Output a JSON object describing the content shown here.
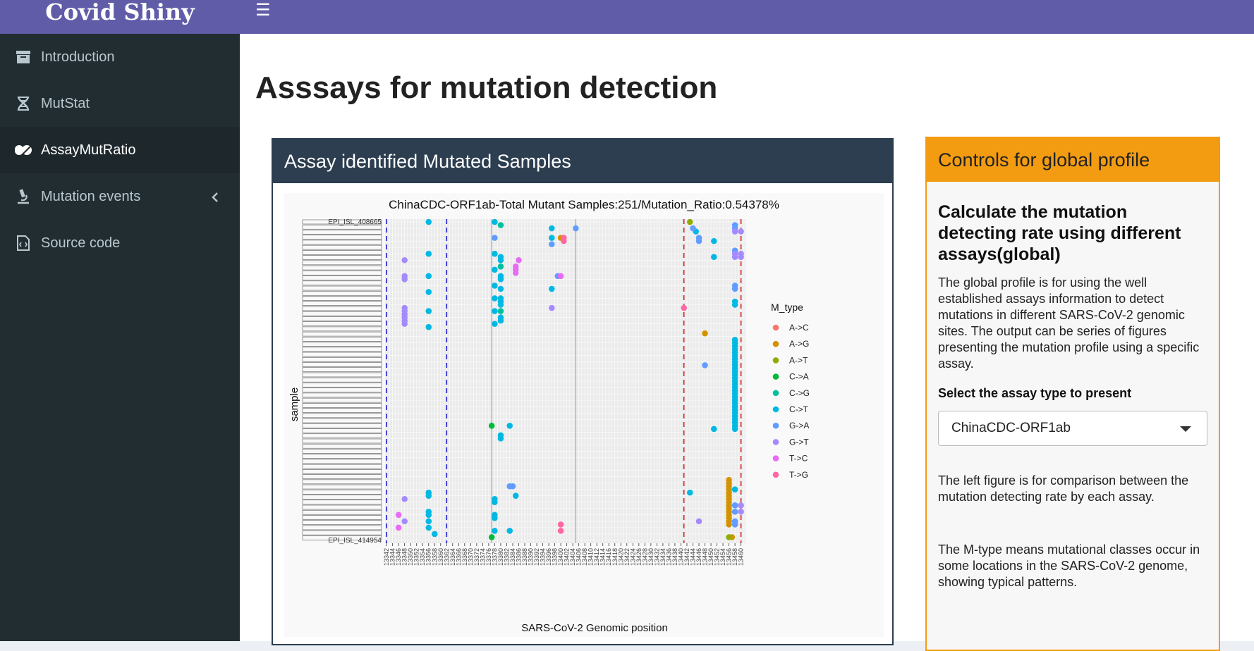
{
  "app": {
    "title": "Covid Shiny"
  },
  "sidebar": {
    "items": [
      {
        "label": "Introduction",
        "icon": "archive-icon"
      },
      {
        "label": "MutStat",
        "icon": "dna-icon"
      },
      {
        "label": "AssayMutRatio",
        "icon": "capsules-icon"
      },
      {
        "label": "Mutation events",
        "icon": "microscope-icon"
      },
      {
        "label": "Source code",
        "icon": "file-code-icon"
      }
    ]
  },
  "colors": {
    "topbar": "#605ca8",
    "sidebar": "#222d32",
    "primary_box": "#2c3e50",
    "warning_box": "#f39c12"
  },
  "page": {
    "title": "Asssays for mutation detection"
  },
  "plot_box": {
    "title": "Assay identified Mutated Samples"
  },
  "controls": {
    "header": "Controls for global profile",
    "heading": "Calculate the mutation detecting rate using different assays(global)",
    "description": "The global profile is for using the well established assays information to detect mutations in different SARS-CoV-2 genomic sites. The output can be series of figures presenting the mutation profile using a specific assay.",
    "select_label": "Select the assay type to present",
    "select_value": "ChinaCDC-ORF1ab",
    "note1": "The left figure is for comparison between the mutation detecting rate by each assay.",
    "note2": "The M-type means mutational classes occur in some locations in the SARS-CoV-2 genome, showing typical patterns."
  },
  "chart_data": {
    "type": "scatter",
    "title": "ChinaCDC-ORF1ab-Total Mutant Samples:251/Mutation_Ratio:0.54378%",
    "xlabel": "SARS-CoV-2 Genomic position",
    "ylabel": "sample",
    "xlim": [
      13342,
      13460
    ],
    "x_ticks": [
      13342,
      13344,
      13346,
      13348,
      13350,
      13352,
      13354,
      13356,
      13358,
      13360,
      13362,
      13364,
      13366,
      13368,
      13370,
      13372,
      13374,
      13376,
      13378,
      13380,
      13382,
      13384,
      13386,
      13388,
      13390,
      13392,
      13394,
      13396,
      13398,
      13400,
      13402,
      13404,
      13406,
      13408,
      13410,
      13412,
      13414,
      13416,
      13418,
      13420,
      13422,
      13424,
      13426,
      13428,
      13430,
      13432,
      13434,
      13436,
      13438,
      13440,
      13442,
      13444,
      13446,
      13448,
      13450,
      13452,
      13454,
      13456,
      13458,
      13460
    ],
    "y_top_label": "EPI_ISL_408665",
    "y_bottom_label": "EPI_ISL_414954",
    "n_samples": 251,
    "vlines": [
      {
        "x": 13342,
        "color": "#2222cc",
        "dash": true
      },
      {
        "x": 13362,
        "color": "#2222cc",
        "dash": true
      },
      {
        "x": 13377,
        "color": "#999999",
        "dash": false
      },
      {
        "x": 13405,
        "color": "#999999",
        "dash": false
      },
      {
        "x": 13441,
        "color": "#cc2222",
        "dash": true
      },
      {
        "x": 13460,
        "color": "#cc2222",
        "dash": true
      }
    ],
    "legend_title": "M_type",
    "legend_position": "right",
    "series": [
      {
        "name": "A->C",
        "color": "#f8766d",
        "points": []
      },
      {
        "name": "A->G",
        "color": "#d39200",
        "points": [
          [
            13400,
            5
          ],
          [
            13448,
            35
          ],
          [
            13456,
            81
          ],
          [
            13456,
            82
          ],
          [
            13456,
            83
          ],
          [
            13456,
            84
          ],
          [
            13456,
            85
          ],
          [
            13456,
            86
          ],
          [
            13456,
            87
          ],
          [
            13456,
            88
          ],
          [
            13456,
            89
          ],
          [
            13456,
            90
          ],
          [
            13456,
            91
          ],
          [
            13456,
            92
          ],
          [
            13456,
            93
          ],
          [
            13456,
            94
          ],
          [
            13456,
            95
          ],
          [
            13457,
            99
          ]
        ]
      },
      {
        "name": "A->T",
        "color": "#93aa00",
        "points": [
          [
            13443,
            0
          ],
          [
            13456,
            99
          ]
        ]
      },
      {
        "name": "C->A",
        "color": "#00ba38",
        "points": [
          [
            13377,
            64
          ],
          [
            13377,
            99
          ]
        ]
      },
      {
        "name": "C->G",
        "color": "#00c19f",
        "points": [
          [
            13380,
            1
          ],
          [
            13380,
            14
          ],
          [
            13380,
            28
          ]
        ]
      },
      {
        "name": "C->T",
        "color": "#00b9e3",
        "points": [
          [
            13356,
            0
          ],
          [
            13356,
            10
          ],
          [
            13356,
            17
          ],
          [
            13356,
            22
          ],
          [
            13356,
            28
          ],
          [
            13356,
            33
          ],
          [
            13356,
            85
          ],
          [
            13356,
            86
          ],
          [
            13356,
            91
          ],
          [
            13356,
            92
          ],
          [
            13356,
            94
          ],
          [
            13356,
            96
          ],
          [
            13358,
            98
          ],
          [
            13378,
            0
          ],
          [
            13378,
            10
          ],
          [
            13378,
            15
          ],
          [
            13378,
            20
          ],
          [
            13378,
            24
          ],
          [
            13378,
            28
          ],
          [
            13378,
            32
          ],
          [
            13378,
            87
          ],
          [
            13378,
            88
          ],
          [
            13378,
            92
          ],
          [
            13378,
            93
          ],
          [
            13378,
            97
          ],
          [
            13380,
            11
          ],
          [
            13380,
            12
          ],
          [
            13380,
            17
          ],
          [
            13380,
            18
          ],
          [
            13380,
            21
          ],
          [
            13380,
            24
          ],
          [
            13380,
            25
          ],
          [
            13380,
            26
          ],
          [
            13380,
            30
          ],
          [
            13380,
            31
          ],
          [
            13380,
            67
          ],
          [
            13380,
            68
          ],
          [
            13383,
            64
          ],
          [
            13383,
            97
          ],
          [
            13385,
            86
          ],
          [
            13397,
            2
          ],
          [
            13397,
            5
          ],
          [
            13397,
            21
          ],
          [
            13443,
            85
          ],
          [
            13445,
            3
          ],
          [
            13451,
            6
          ],
          [
            13451,
            11
          ],
          [
            13458,
            25
          ],
          [
            13458,
            26
          ],
          [
            13458,
            37
          ],
          [
            13458,
            38
          ],
          [
            13458,
            39
          ],
          [
            13458,
            40
          ],
          [
            13458,
            41
          ],
          [
            13458,
            42
          ],
          [
            13458,
            43
          ],
          [
            13458,
            44
          ],
          [
            13458,
            45
          ],
          [
            13458,
            46
          ],
          [
            13458,
            47
          ],
          [
            13458,
            48
          ],
          [
            13458,
            49
          ],
          [
            13458,
            50
          ],
          [
            13458,
            51
          ],
          [
            13458,
            52
          ],
          [
            13458,
            53
          ],
          [
            13458,
            54
          ],
          [
            13458,
            55
          ],
          [
            13458,
            56
          ],
          [
            13458,
            57
          ],
          [
            13458,
            58
          ],
          [
            13458,
            59
          ],
          [
            13458,
            60
          ],
          [
            13458,
            61
          ],
          [
            13458,
            62
          ],
          [
            13458,
            63
          ],
          [
            13458,
            64
          ],
          [
            13458,
            65
          ],
          [
            13458,
            84
          ],
          [
            13458,
            89
          ],
          [
            13451,
            65
          ]
        ]
      },
      {
        "name": "G->A",
        "color": "#619cff",
        "points": [
          [
            13378,
            5
          ],
          [
            13383,
            83
          ],
          [
            13384,
            83
          ],
          [
            13397,
            7
          ],
          [
            13399,
            17
          ],
          [
            13405,
            2
          ],
          [
            13444,
            2
          ],
          [
            13446,
            5
          ],
          [
            13446,
            6
          ],
          [
            13458,
            1
          ],
          [
            13458,
            2
          ],
          [
            13458,
            9
          ],
          [
            13458,
            20
          ],
          [
            13458,
            21
          ],
          [
            13458,
            89
          ],
          [
            13458,
            91
          ],
          [
            13458,
            94
          ],
          [
            13458,
            95
          ],
          [
            13448,
            45
          ]
        ]
      },
      {
        "name": "G->T",
        "color": "#a58aff",
        "points": [
          [
            13348,
            12
          ],
          [
            13348,
            17
          ],
          [
            13348,
            18
          ],
          [
            13348,
            27
          ],
          [
            13348,
            28
          ],
          [
            13348,
            29
          ],
          [
            13348,
            30
          ],
          [
            13348,
            31
          ],
          [
            13348,
            32
          ],
          [
            13348,
            87
          ],
          [
            13348,
            94
          ],
          [
            13397,
            27
          ],
          [
            13446,
            94
          ],
          [
            13458,
            3
          ],
          [
            13458,
            10
          ],
          [
            13458,
            11
          ],
          [
            13460,
            3
          ],
          [
            13460,
            10
          ],
          [
            13460,
            11
          ],
          [
            13460,
            89
          ],
          [
            13460,
            91
          ]
        ]
      },
      {
        "name": "T->C",
        "color": "#e76bf3",
        "points": [
          [
            13386,
            12
          ],
          [
            13385,
            14
          ],
          [
            13385,
            15
          ],
          [
            13385,
            16
          ],
          [
            13400,
            17
          ],
          [
            13346,
            92
          ],
          [
            13346,
            96
          ]
        ]
      },
      {
        "name": "T->G",
        "color": "#ff67a4",
        "points": [
          [
            13401,
            5
          ],
          [
            13401,
            6
          ],
          [
            13441,
            27
          ],
          [
            13400,
            95
          ],
          [
            13400,
            97
          ]
        ]
      }
    ]
  }
}
